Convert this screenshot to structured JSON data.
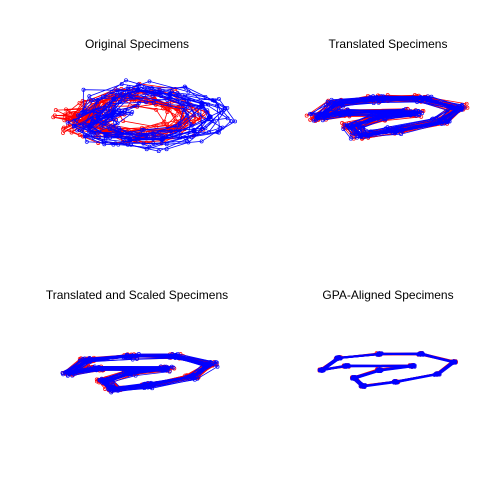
{
  "figure": {
    "panels": [
      {
        "title": "Original Specimens"
      },
      {
        "title": "Translated Specimens"
      },
      {
        "title": "Translated and Scaled Specimens"
      },
      {
        "title": "GPA-Aligned Specimens"
      }
    ]
  },
  "colors": {
    "reference": "#ff0000",
    "specimens": "#0000ff",
    "background": "#ffffff",
    "title": "#000000"
  },
  "chart_data": [
    {
      "type": "scatter",
      "title": "Original Specimens",
      "xlabel": "",
      "ylabel": "",
      "axes_visible": false,
      "grid": false,
      "marker": "open-circle",
      "connected": true,
      "xlim": [
        -10,
        10
      ],
      "ylim": [
        -10,
        10
      ],
      "series": [
        {
          "color": "#ff0000",
          "points": [
            [
              -7,
              -1
            ],
            [
              -5,
              3
            ],
            [
              -2,
              5
            ],
            [
              2,
              4
            ],
            [
              5,
              2
            ],
            [
              6,
              -1
            ],
            [
              4,
              -3
            ],
            [
              0,
              -4
            ],
            [
              -4,
              -3
            ],
            [
              -6,
              -2
            ],
            [
              -8,
              0
            ],
            [
              -5,
              1
            ]
          ]
        },
        {
          "color": "#0000ff",
          "points": [
            [
              -5,
              0
            ],
            [
              -3,
              4
            ],
            [
              0,
              6
            ],
            [
              4,
              5
            ],
            [
              8,
              3
            ],
            [
              9,
              0
            ],
            [
              7,
              -3
            ],
            [
              3,
              -5
            ],
            [
              -1,
              -5
            ],
            [
              -4,
              -4
            ],
            [
              -6,
              -2
            ],
            [
              -3,
              1
            ]
          ]
        }
      ]
    },
    {
      "type": "scatter",
      "title": "Translated Specimens",
      "xlabel": "",
      "ylabel": "",
      "axes_visible": false,
      "grid": false,
      "marker": "open-circle",
      "connected": true,
      "xlim": [
        -10,
        10
      ],
      "ylim": [
        -10,
        10
      ],
      "series": [
        {
          "color": "#ff0000",
          "points": [
            [
              -8,
              0
            ],
            [
              -6,
              3
            ],
            [
              -1,
              4
            ],
            [
              4,
              4
            ],
            [
              8,
              2
            ],
            [
              6,
              -1
            ],
            [
              1,
              -3
            ],
            [
              -3,
              -4
            ],
            [
              -4,
              -2
            ],
            [
              -1,
              0
            ],
            [
              3,
              1
            ],
            [
              -5,
              1
            ]
          ]
        },
        {
          "color": "#0000ff",
          "points": [
            [
              -8,
              0
            ],
            [
              -6,
              3
            ],
            [
              -1,
              4
            ],
            [
              4,
              4
            ],
            [
              8,
              2
            ],
            [
              6,
              -1
            ],
            [
              1,
              -3
            ],
            [
              -3,
              -4
            ],
            [
              -4,
              -2
            ],
            [
              -1,
              0
            ],
            [
              3,
              1
            ],
            [
              -5,
              1
            ]
          ]
        }
      ]
    },
    {
      "type": "scatter",
      "title": "Translated and Scaled Specimens",
      "xlabel": "",
      "ylabel": "",
      "axes_visible": false,
      "grid": false,
      "marker": "open-circle",
      "connected": true,
      "xlim": [
        -10,
        10
      ],
      "ylim": [
        -10,
        10
      ],
      "series": [
        {
          "color": "#ff0000",
          "points": [
            [
              -8,
              0
            ],
            [
              -6,
              3
            ],
            [
              -1,
              4
            ],
            [
              4,
              4
            ],
            [
              8,
              2
            ],
            [
              6,
              -1
            ],
            [
              1,
              -3
            ],
            [
              -3,
              -4
            ],
            [
              -4,
              -2
            ],
            [
              -1,
              0
            ],
            [
              3,
              1
            ],
            [
              -5,
              1
            ]
          ]
        },
        {
          "color": "#0000ff",
          "points": [
            [
              -8,
              0
            ],
            [
              -6,
              3
            ],
            [
              -1,
              4
            ],
            [
              4,
              4
            ],
            [
              8,
              2
            ],
            [
              6,
              -1
            ],
            [
              1,
              -3
            ],
            [
              -3,
              -4
            ],
            [
              -4,
              -2
            ],
            [
              -1,
              0
            ],
            [
              3,
              1
            ],
            [
              -5,
              1
            ]
          ]
        }
      ]
    },
    {
      "type": "scatter",
      "title": "GPA-Aligned Specimens",
      "xlabel": "",
      "ylabel": "",
      "axes_visible": false,
      "grid": false,
      "marker": "open-circle",
      "connected": true,
      "xlim": [
        -10,
        10
      ],
      "ylim": [
        -10,
        10
      ],
      "series": [
        {
          "color": "#ff0000",
          "points": [
            [
              -8,
              0
            ],
            [
              -6,
              3
            ],
            [
              -1,
              4
            ],
            [
              4,
              4
            ],
            [
              8,
              2
            ],
            [
              6,
              -1
            ],
            [
              1,
              -3
            ],
            [
              -3,
              -4
            ],
            [
              -4,
              -2
            ],
            [
              -1,
              0
            ],
            [
              3,
              1
            ],
            [
              -5,
              1
            ]
          ]
        },
        {
          "color": "#0000ff",
          "points": [
            [
              -8,
              0
            ],
            [
              -6,
              3
            ],
            [
              -1,
              4
            ],
            [
              4,
              4
            ],
            [
              8,
              2
            ],
            [
              6,
              -1
            ],
            [
              1,
              -3
            ],
            [
              -3,
              -4
            ],
            [
              -4,
              -2
            ],
            [
              -1,
              0
            ],
            [
              3,
              1
            ],
            [
              -5,
              1
            ]
          ]
        }
      ]
    }
  ]
}
